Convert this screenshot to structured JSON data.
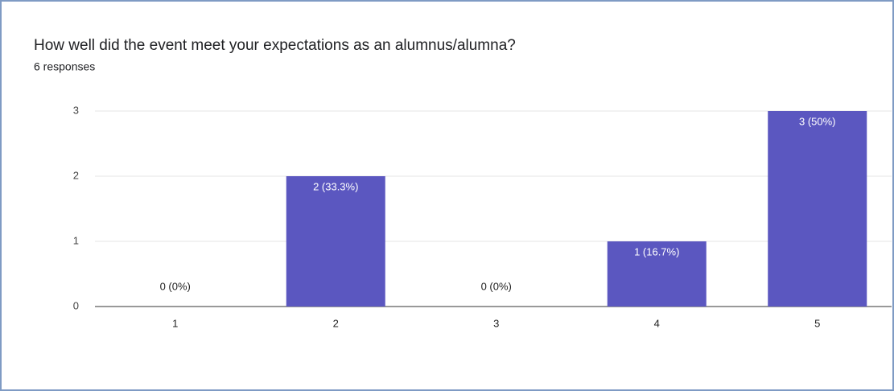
{
  "chart_data": {
    "type": "bar",
    "title": "How well did the event meet your expectations as an alumnus/alumna?",
    "subtitle": "6 responses",
    "categories": [
      "1",
      "2",
      "3",
      "4",
      "5"
    ],
    "values": [
      0,
      2,
      0,
      1,
      3
    ],
    "value_labels": [
      "0 (0%)",
      "2 (33.3%)",
      "0 (0%)",
      "1 (16.7%)",
      "3 (50%)"
    ],
    "color": "#5b57c0",
    "ylim": [
      0,
      3
    ],
    "yticks": [
      0,
      1,
      2,
      3
    ],
    "grid": true
  }
}
